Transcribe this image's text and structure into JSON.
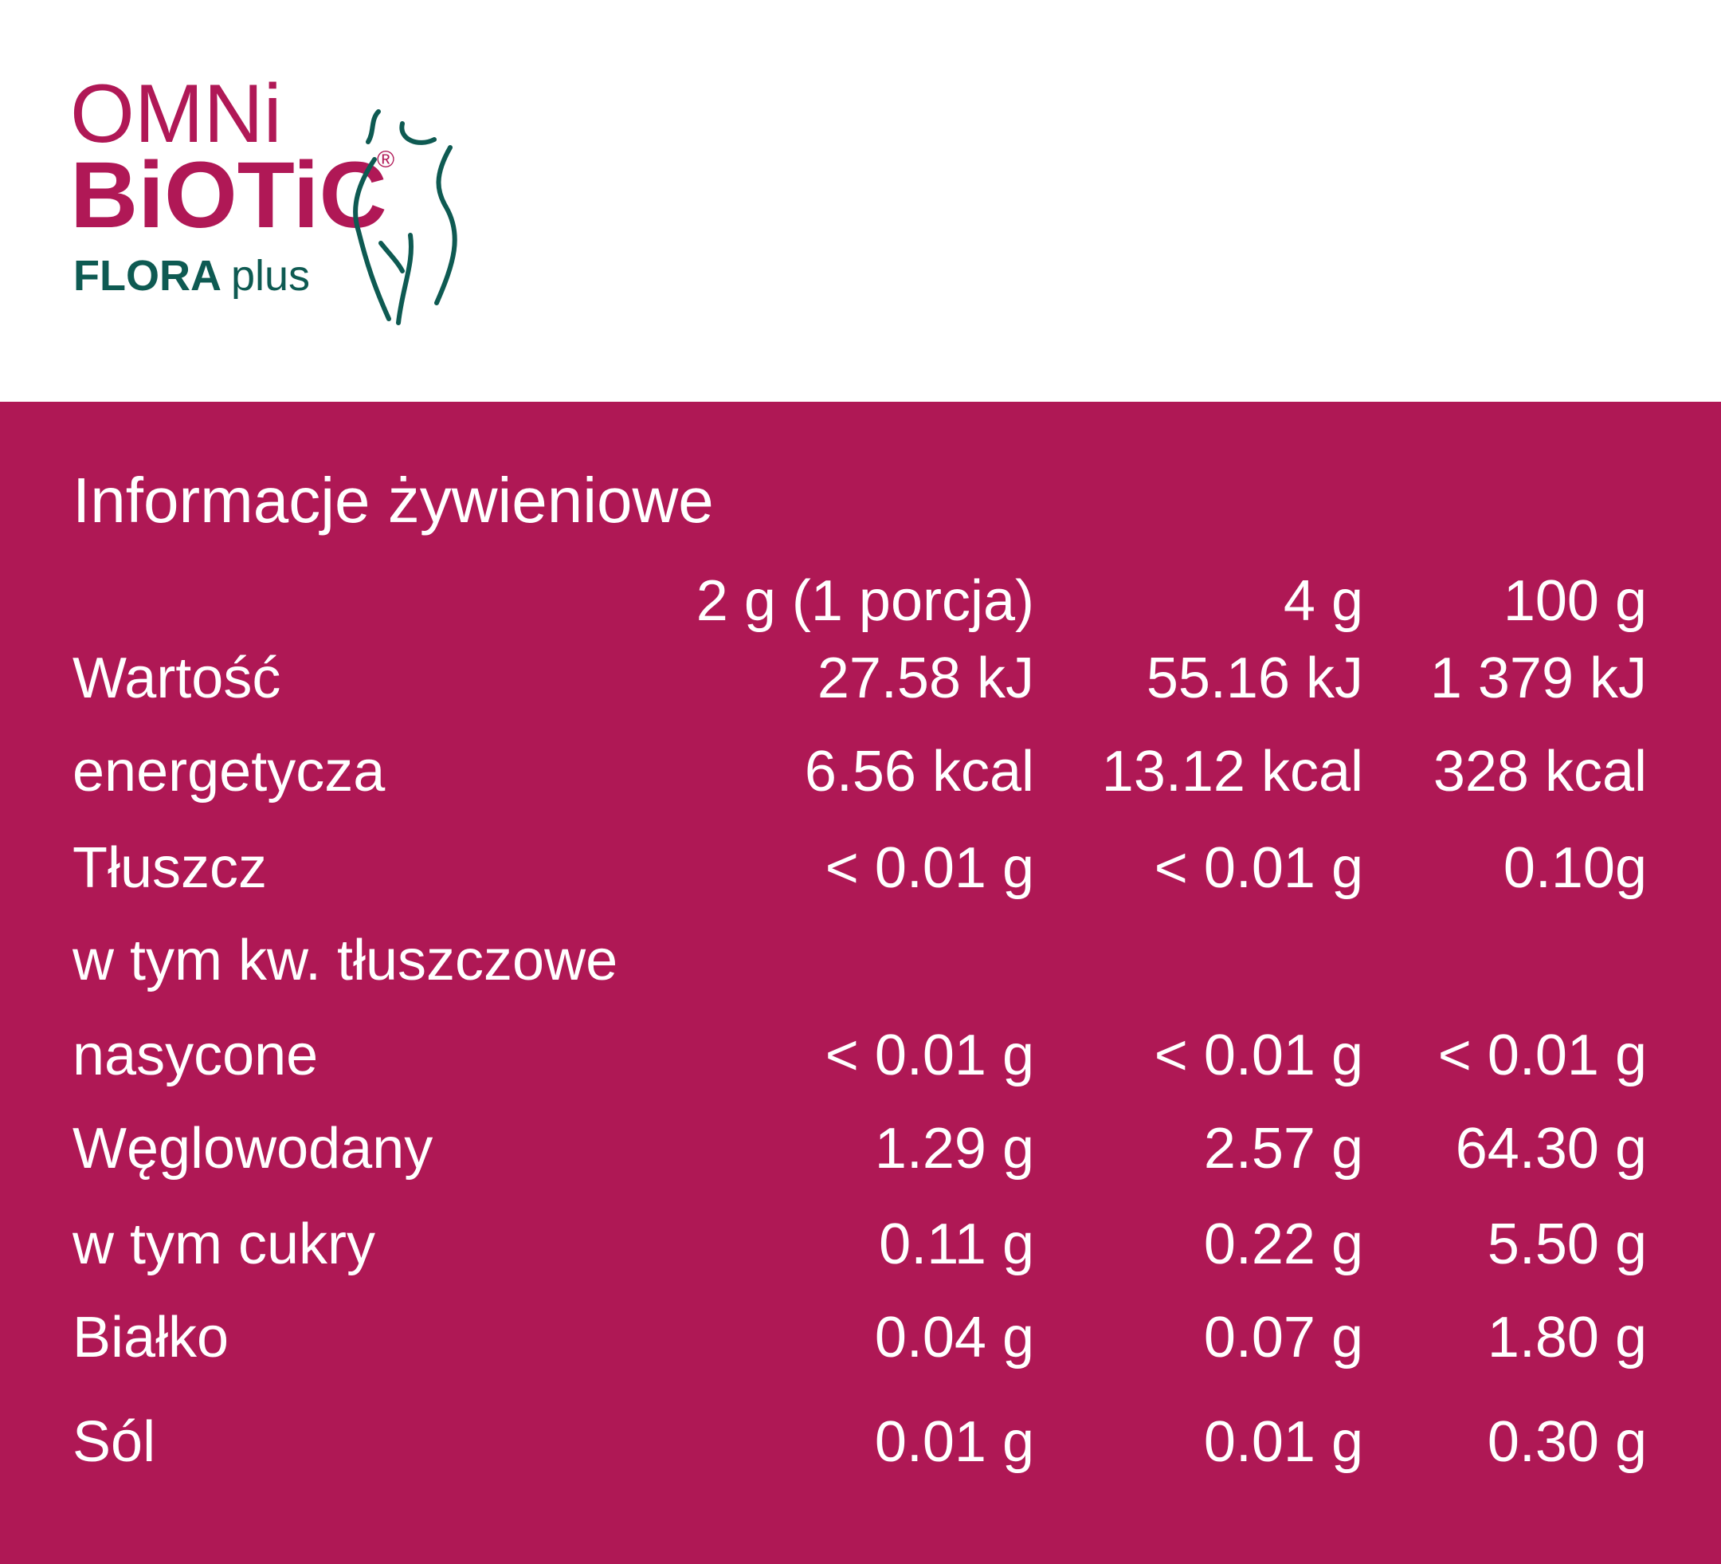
{
  "logo": {
    "line1": "OMNi",
    "line2": "BiOTiC",
    "registered": "®",
    "line3_bold": "FLORA",
    "line3": "plus"
  },
  "title": "Informacje żywieniowe",
  "table": {
    "columns": [
      "2 g (1 porcja)",
      "4 g",
      "100 g"
    ],
    "rows": [
      [
        "Wartość",
        "27.58 kJ",
        "55.16 kJ",
        "1 379 kJ"
      ],
      [
        "energetycza",
        "6.56 kcal",
        "13.12 kcal",
        "328 kcal"
      ],
      [
        "Tłuszcz",
        "< 0.01 g",
        "< 0.01 g",
        "0.10g"
      ],
      [
        "w tym kw. tłuszczowe"
      ],
      [
        "nasycone",
        "< 0.01 g",
        "< 0.01 g",
        "< 0.01 g"
      ],
      [
        "Węglowodany",
        "1.29 g",
        "2.57 g",
        "64.30 g"
      ],
      [
        "w tym cukry",
        "0.11 g",
        "0.22 g",
        "5.50 g"
      ],
      [
        "Białko",
        "0.04 g",
        "0.07 g",
        "1.80 g"
      ],
      [
        "Sól",
        "0.01 g",
        "0.01 g",
        "0.30 g"
      ]
    ]
  }
}
